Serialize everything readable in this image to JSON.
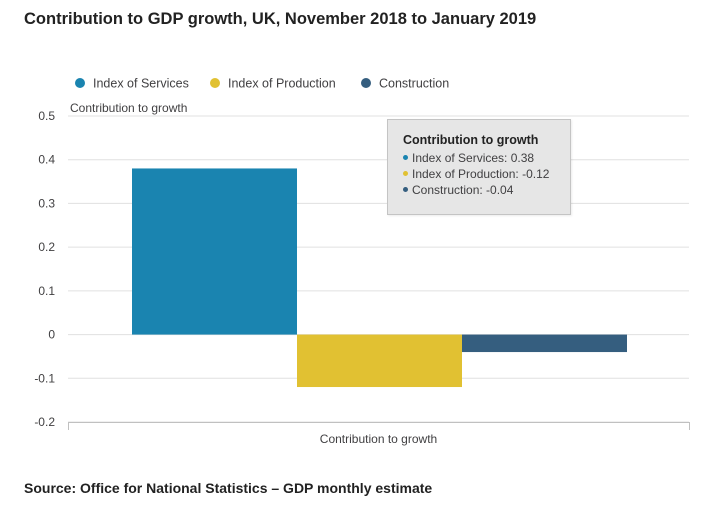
{
  "title": "Contribution to GDP growth, UK, November 2018 to January 2019",
  "source": "Source: Office for National Statistics – GDP monthly estimate",
  "colors": {
    "services": "#1a84b0",
    "production": "#e1c132",
    "construction": "#355e7f",
    "grid": "#e0e0e0",
    "axis": "#c0c0c0",
    "text": "#414042"
  },
  "tooltip": {
    "title": "Contribution to growth",
    "rows": [
      "Index of Services: 0.38",
      "Index of Production: -0.12",
      "Construction: -0.04"
    ]
  },
  "chart_data": {
    "type": "bar",
    "title": "Contribution to GDP growth, UK, November 2018 to January 2019",
    "categories": [
      "Contribution to growth"
    ],
    "xlabel": "Contribution to growth",
    "ylabel": "Contribution to growth",
    "ylim": [
      -0.2,
      0.5
    ],
    "yticks": [
      -0.2,
      -0.1,
      0,
      0.1,
      0.2,
      0.3,
      0.4,
      0.5
    ],
    "ytick_labels": [
      "-0.2",
      "-0.1",
      "0",
      "0.1",
      "0.2",
      "0.3",
      "0.4",
      "0.5"
    ],
    "grid": true,
    "legend_position": "top-left",
    "series": [
      {
        "name": "Index of Services",
        "values": [
          0.38
        ],
        "color": "#1a84b0"
      },
      {
        "name": "Index of Production",
        "values": [
          -0.12
        ],
        "color": "#e1c132"
      },
      {
        "name": "Construction",
        "values": [
          -0.04
        ],
        "color": "#355e7f"
      }
    ]
  }
}
